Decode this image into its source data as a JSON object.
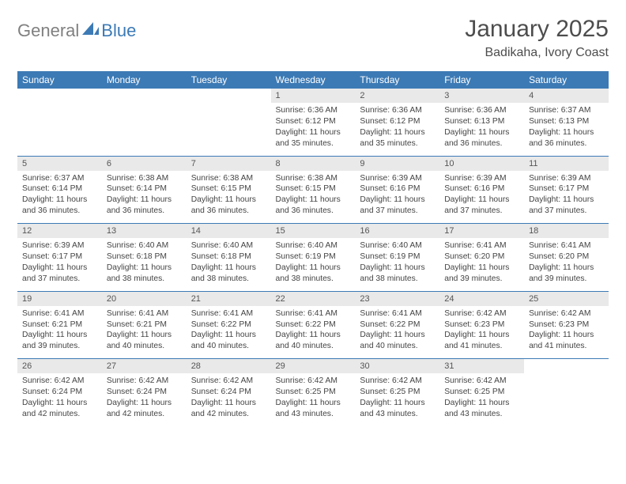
{
  "logo": {
    "part1": "General",
    "part2": "Blue"
  },
  "title": "January 2025",
  "location": "Badikaha, Ivory Coast",
  "colors": {
    "brand_blue": "#3c7ab5",
    "grey_text": "#808080",
    "daynum_bg": "#e9e9e9",
    "body_text": "#444444"
  },
  "dow": [
    "Sunday",
    "Monday",
    "Tuesday",
    "Wednesday",
    "Thursday",
    "Friday",
    "Saturday"
  ],
  "weeks": [
    [
      null,
      null,
      null,
      {
        "n": "1",
        "sr": "6:36 AM",
        "ss": "6:12 PM",
        "dl": "11 hours and 35 minutes."
      },
      {
        "n": "2",
        "sr": "6:36 AM",
        "ss": "6:12 PM",
        "dl": "11 hours and 35 minutes."
      },
      {
        "n": "3",
        "sr": "6:36 AM",
        "ss": "6:13 PM",
        "dl": "11 hours and 36 minutes."
      },
      {
        "n": "4",
        "sr": "6:37 AM",
        "ss": "6:13 PM",
        "dl": "11 hours and 36 minutes."
      }
    ],
    [
      {
        "n": "5",
        "sr": "6:37 AM",
        "ss": "6:14 PM",
        "dl": "11 hours and 36 minutes."
      },
      {
        "n": "6",
        "sr": "6:38 AM",
        "ss": "6:14 PM",
        "dl": "11 hours and 36 minutes."
      },
      {
        "n": "7",
        "sr": "6:38 AM",
        "ss": "6:15 PM",
        "dl": "11 hours and 36 minutes."
      },
      {
        "n": "8",
        "sr": "6:38 AM",
        "ss": "6:15 PM",
        "dl": "11 hours and 36 minutes."
      },
      {
        "n": "9",
        "sr": "6:39 AM",
        "ss": "6:16 PM",
        "dl": "11 hours and 37 minutes."
      },
      {
        "n": "10",
        "sr": "6:39 AM",
        "ss": "6:16 PM",
        "dl": "11 hours and 37 minutes."
      },
      {
        "n": "11",
        "sr": "6:39 AM",
        "ss": "6:17 PM",
        "dl": "11 hours and 37 minutes."
      }
    ],
    [
      {
        "n": "12",
        "sr": "6:39 AM",
        "ss": "6:17 PM",
        "dl": "11 hours and 37 minutes."
      },
      {
        "n": "13",
        "sr": "6:40 AM",
        "ss": "6:18 PM",
        "dl": "11 hours and 38 minutes."
      },
      {
        "n": "14",
        "sr": "6:40 AM",
        "ss": "6:18 PM",
        "dl": "11 hours and 38 minutes."
      },
      {
        "n": "15",
        "sr": "6:40 AM",
        "ss": "6:19 PM",
        "dl": "11 hours and 38 minutes."
      },
      {
        "n": "16",
        "sr": "6:40 AM",
        "ss": "6:19 PM",
        "dl": "11 hours and 38 minutes."
      },
      {
        "n": "17",
        "sr": "6:41 AM",
        "ss": "6:20 PM",
        "dl": "11 hours and 39 minutes."
      },
      {
        "n": "18",
        "sr": "6:41 AM",
        "ss": "6:20 PM",
        "dl": "11 hours and 39 minutes."
      }
    ],
    [
      {
        "n": "19",
        "sr": "6:41 AM",
        "ss": "6:21 PM",
        "dl": "11 hours and 39 minutes."
      },
      {
        "n": "20",
        "sr": "6:41 AM",
        "ss": "6:21 PM",
        "dl": "11 hours and 40 minutes."
      },
      {
        "n": "21",
        "sr": "6:41 AM",
        "ss": "6:22 PM",
        "dl": "11 hours and 40 minutes."
      },
      {
        "n": "22",
        "sr": "6:41 AM",
        "ss": "6:22 PM",
        "dl": "11 hours and 40 minutes."
      },
      {
        "n": "23",
        "sr": "6:41 AM",
        "ss": "6:22 PM",
        "dl": "11 hours and 40 minutes."
      },
      {
        "n": "24",
        "sr": "6:42 AM",
        "ss": "6:23 PM",
        "dl": "11 hours and 41 minutes."
      },
      {
        "n": "25",
        "sr": "6:42 AM",
        "ss": "6:23 PM",
        "dl": "11 hours and 41 minutes."
      }
    ],
    [
      {
        "n": "26",
        "sr": "6:42 AM",
        "ss": "6:24 PM",
        "dl": "11 hours and 42 minutes."
      },
      {
        "n": "27",
        "sr": "6:42 AM",
        "ss": "6:24 PM",
        "dl": "11 hours and 42 minutes."
      },
      {
        "n": "28",
        "sr": "6:42 AM",
        "ss": "6:24 PM",
        "dl": "11 hours and 42 minutes."
      },
      {
        "n": "29",
        "sr": "6:42 AM",
        "ss": "6:25 PM",
        "dl": "11 hours and 43 minutes."
      },
      {
        "n": "30",
        "sr": "6:42 AM",
        "ss": "6:25 PM",
        "dl": "11 hours and 43 minutes."
      },
      {
        "n": "31",
        "sr": "6:42 AM",
        "ss": "6:25 PM",
        "dl": "11 hours and 43 minutes."
      },
      null
    ]
  ],
  "labels": {
    "sunrise": "Sunrise:",
    "sunset": "Sunset:",
    "daylight": "Daylight:"
  }
}
